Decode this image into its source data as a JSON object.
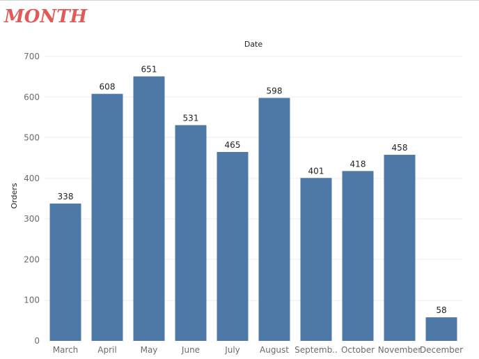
{
  "header": {
    "title": "MONTH"
  },
  "colors": {
    "bar": "#4e79a7",
    "title": "#e05a5a",
    "grid": "#eeeeee"
  },
  "chart_data": {
    "type": "bar",
    "title": "MONTH",
    "column_header": "Date",
    "xlabel": "",
    "ylabel": "Orders",
    "categories": [
      "March",
      "April",
      "May",
      "June",
      "July",
      "August",
      "Septemb..",
      "October",
      "November",
      "December"
    ],
    "values": [
      338,
      608,
      651,
      531,
      465,
      598,
      401,
      418,
      458,
      58
    ],
    "ylim": [
      0,
      700
    ],
    "yticks": [
      0,
      100,
      200,
      300,
      400,
      500,
      600,
      700
    ],
    "grid": true,
    "data_labels": true
  }
}
